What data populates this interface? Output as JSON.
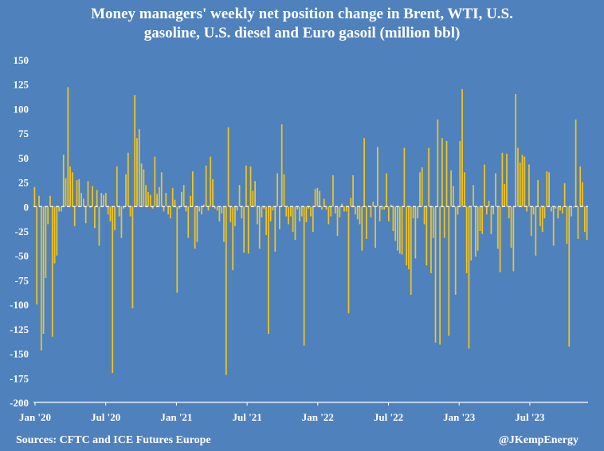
{
  "chart_data": {
    "type": "bar",
    "title_line1": "Money managers' weekly net position change in Brent, WTI, U.S.",
    "title_line2": "gasoline, U.S. diesel and Euro gasoil (million bbl)",
    "xlabel": "",
    "ylabel": "",
    "ylim": [
      -200,
      150
    ],
    "yticks": [
      150,
      125,
      100,
      75,
      50,
      25,
      0,
      -25,
      -50,
      -75,
      -100,
      -125,
      -150,
      -175,
      -200
    ],
    "xtick_labels": [
      "Jan '20",
      "Jul '20",
      "Jan '21",
      "Jul '21",
      "Jan '22",
      "Jul '22",
      "Jan '23",
      "Jul '23"
    ],
    "grid": false,
    "bar_color": "#f5c518",
    "background_color": "#4f81bd",
    "series": [
      {
        "name": "Weekly net position change (million bbl)",
        "values": [
          20,
          -100,
          11,
          -147,
          -130,
          -73,
          -18,
          11,
          -133,
          -58,
          -50,
          -5,
          -5,
          53,
          29,
          122,
          41,
          35,
          -20,
          27,
          28,
          14,
          8,
          -17,
          26,
          -1,
          21,
          -22,
          17,
          -40,
          14,
          12,
          14,
          -8,
          -15,
          -170,
          -24,
          41,
          -10,
          -32,
          -2,
          33,
          55,
          -10,
          -104,
          114,
          70,
          79,
          44,
          38,
          22,
          15,
          12,
          -2,
          51,
          13,
          20,
          35,
          -5,
          14,
          -8,
          -12,
          19,
          7,
          -88,
          -2,
          15,
          22,
          -5,
          -32,
          11,
          36,
          -43,
          -36,
          -5,
          -8,
          2,
          42,
          -4,
          51,
          28,
          -2,
          -4,
          -15,
          -7,
          -36,
          -172,
          81,
          -16,
          -65,
          -20,
          -4,
          22,
          -12,
          -47,
          42,
          -48,
          41,
          16,
          26,
          -18,
          -43,
          -11,
          -2,
          -29,
          -130,
          -15,
          -4,
          -46,
          34,
          -23,
          84,
          33,
          -10,
          -18,
          -10,
          -26,
          -34,
          -3,
          -15,
          -10,
          -142,
          -16,
          -2,
          -10,
          -26,
          18,
          19,
          16,
          -3,
          8,
          -3,
          -18,
          -10,
          32,
          -7,
          -30,
          -11,
          3,
          -5,
          -5,
          -109,
          9,
          32,
          -8,
          -13,
          -18,
          -45,
          70,
          -33,
          1,
          -11,
          5,
          -42,
          61,
          -15,
          -3,
          -3,
          34,
          -15,
          2,
          -25,
          -35,
          -45,
          -48,
          -49,
          60,
          -60,
          -64,
          -90,
          -12,
          -53,
          -12,
          35,
          40,
          -18,
          -60,
          60,
          -68,
          -32,
          -139,
          89,
          -141,
          70,
          -32,
          67,
          -132,
          37,
          21,
          -90,
          -8,
          67,
          120,
          35,
          -68,
          -145,
          -55,
          22,
          -51,
          -45,
          -25,
          -28,
          43,
          -8,
          6,
          -28,
          -8,
          34,
          -43,
          -67,
          55,
          23,
          54,
          -12,
          -42,
          -66,
          115,
          60,
          45,
          53,
          51,
          -5,
          43,
          -30,
          -8,
          -50,
          27,
          -20,
          -26,
          -12,
          36,
          35,
          -5,
          -40,
          -2,
          -12,
          -4,
          -7,
          24,
          -38,
          -143,
          -10,
          -1,
          89,
          -33,
          41,
          25,
          -26,
          -34
        ]
      }
    ]
  },
  "footer": {
    "source": "Sources: CFTC and ICE Futures Europe",
    "credit": "@JKempEnergy"
  }
}
